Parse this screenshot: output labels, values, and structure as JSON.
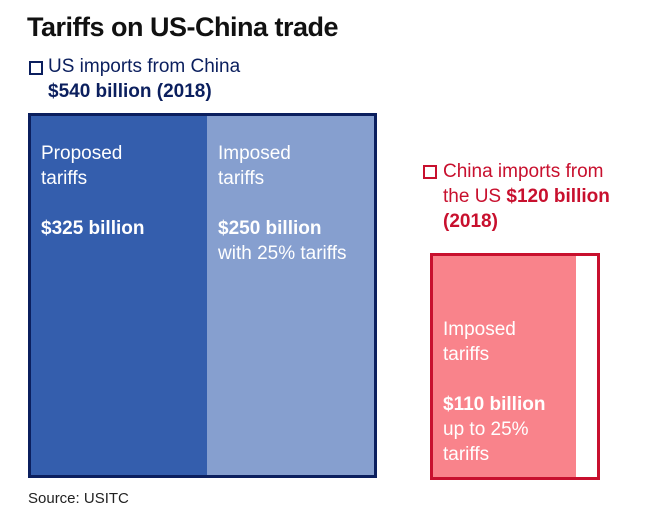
{
  "title": "Tariffs on US-China trade",
  "source": "Source: USITC",
  "colors": {
    "us_border": "#0b1f5e",
    "us_proposed": "#345ead",
    "us_imposed": "#869fcf",
    "cn_border": "#c8102e",
    "cn_imposed": "#f9838b"
  },
  "chart_data": {
    "type": "treemap",
    "title": "Tariffs on US-China trade",
    "groups": [
      {
        "name": "US imports from China",
        "total_label": "$540 billion (2018)",
        "total": 540,
        "segments": [
          {
            "label": "Proposed tariffs",
            "value_label": "$325 billion",
            "value": 325,
            "note": ""
          },
          {
            "label": "Imposed tariffs",
            "value_label": "$250 billion",
            "value": 250,
            "note": "with 25% tariffs"
          }
        ]
      },
      {
        "name": "China imports from the US",
        "total_label": "$120 billion (2018)",
        "total": 120,
        "segments": [
          {
            "label": "Imposed tariffs",
            "value_label": "$110 billion",
            "value": 110,
            "note": "up to 25% tariffs"
          }
        ]
      }
    ]
  },
  "legend": {
    "us_line1": "US imports from China",
    "us_line2": "$540 billion (2018)",
    "cn_line1": "China imports from",
    "cn_line2a": "the US ",
    "cn_line2b": "$120 billion",
    "cn_line3": "(2018)"
  },
  "blocks": {
    "us_proposed": {
      "l1": "Proposed",
      "l2": "tariffs",
      "value": "$325 billion"
    },
    "us_imposed": {
      "l1": "Imposed",
      "l2": "tariffs",
      "value": "$250 billion",
      "note": "with 25% tariffs"
    },
    "cn_imposed": {
      "l1": "Imposed",
      "l2": "tariffs",
      "value": "$110 billion",
      "note1": "up to 25%",
      "note2": "tariffs"
    }
  }
}
